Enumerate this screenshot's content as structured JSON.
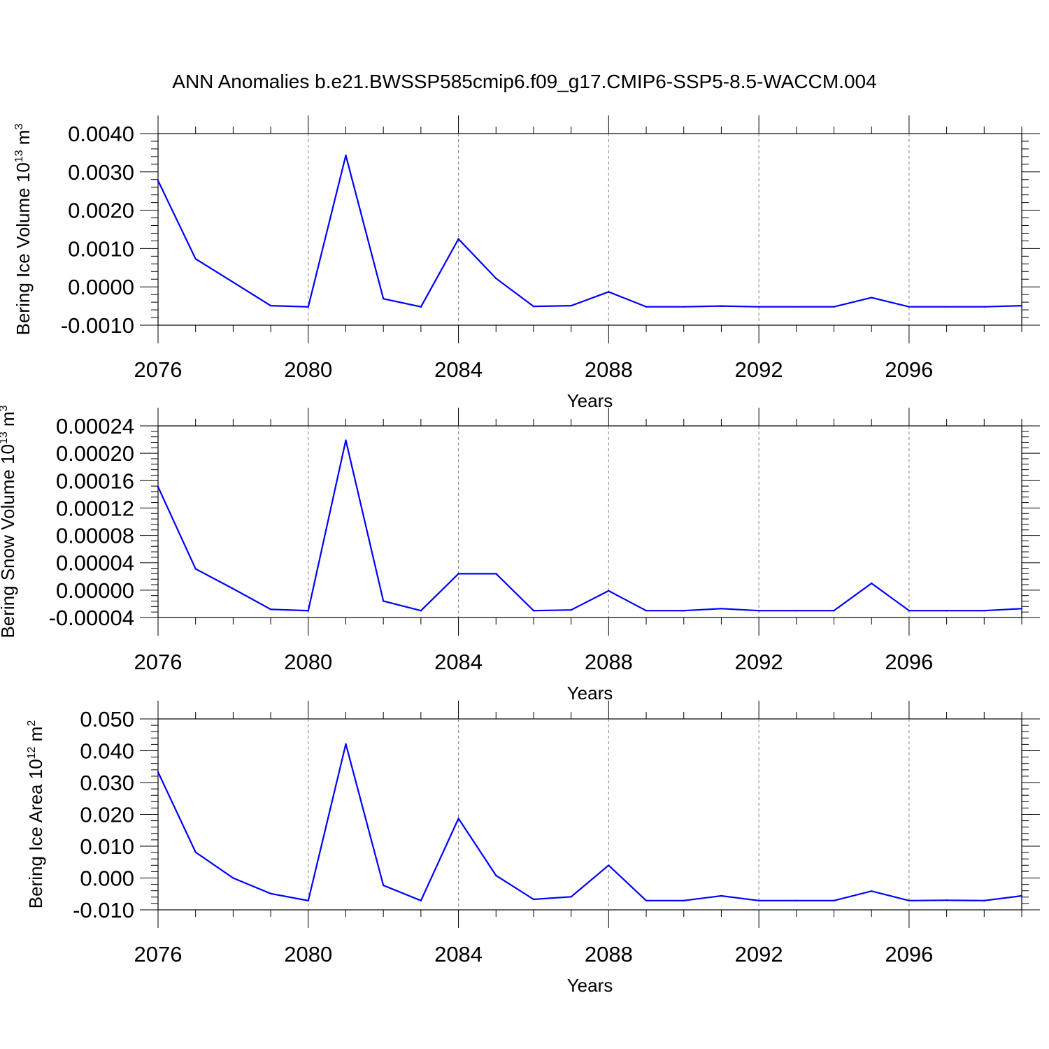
{
  "title": "ANN Anomalies b.e21.BWSSP585cmip6.f09_g17.CMIP6-SSP5-8.5-WACCM.004",
  "colors": {
    "line": "#0000ff",
    "axis": "#000000",
    "grid": "#808080"
  },
  "chart_data": [
    {
      "type": "line",
      "ylabel": "Bering Ice Volume 10",
      "ylabel_exp": "13",
      "ylabel_unit": " m",
      "ylabel_unit_exp": "3",
      "xlabel": "Years",
      "xlim": [
        2076,
        2099
      ],
      "ylim": [
        -0.001,
        0.004
      ],
      "y_ticks": [
        -0.001,
        0.0,
        0.001,
        0.002,
        0.003,
        0.004
      ],
      "y_tick_labels": [
        "-0.0010",
        "0.0000",
        "0.0010",
        "0.0020",
        "0.0030",
        "0.0040"
      ],
      "x_ticks": [
        2076,
        2080,
        2084,
        2088,
        2092,
        2096
      ],
      "x_tick_labels": [
        "2076",
        "2080",
        "2084",
        "2088",
        "2092",
        "2096"
      ],
      "grid_x": [
        2080,
        2084,
        2088,
        2092,
        2096
      ],
      "x": [
        2076,
        2077,
        2078,
        2079,
        2080,
        2081,
        2082,
        2083,
        2084,
        2085,
        2086,
        2087,
        2088,
        2089,
        2090,
        2091,
        2092,
        2093,
        2094,
        2095,
        2096,
        2097,
        2098,
        2099
      ],
      "y": [
        0.00277,
        0.00073,
        0.00012,
        -0.00049,
        -0.00052,
        0.00343,
        -0.00031,
        -0.00052,
        0.00125,
        0.00022,
        -0.00051,
        -0.00049,
        -0.00013,
        -0.00052,
        -0.00052,
        -0.0005,
        -0.00052,
        -0.00052,
        -0.00052,
        -0.00028,
        -0.00052,
        -0.00052,
        -0.00052,
        -0.00049
      ]
    },
    {
      "type": "line",
      "ylabel": "Bering Snow Volume 10",
      "ylabel_exp": "13",
      "ylabel_unit": " m",
      "ylabel_unit_exp": "3",
      "xlabel": "Years",
      "xlim": [
        2076,
        2099
      ],
      "ylim": [
        -4e-05,
        0.00024
      ],
      "y_ticks": [
        -4e-05,
        0.0,
        4e-05,
        8e-05,
        0.00012,
        0.00016,
        0.0002,
        0.00024
      ],
      "y_tick_labels": [
        "-0.00004",
        "0.00000",
        "0.00004",
        "0.00008",
        "0.00012",
        "0.00016",
        "0.00020",
        "0.00024"
      ],
      "x_ticks": [
        2076,
        2080,
        2084,
        2088,
        2092,
        2096
      ],
      "x_tick_labels": [
        "2076",
        "2080",
        "2084",
        "2088",
        "2092",
        "2096"
      ],
      "grid_x": [
        2080,
        2084,
        2088,
        2092,
        2096
      ],
      "x": [
        2076,
        2077,
        2078,
        2079,
        2080,
        2081,
        2082,
        2083,
        2084,
        2085,
        2086,
        2087,
        2088,
        2089,
        2090,
        2091,
        2092,
        2093,
        2094,
        2095,
        2096,
        2097,
        2098,
        2099
      ],
      "y": [
        0.000151,
        3.1e-05,
        2e-06,
        -2.8e-05,
        -3e-05,
        0.000219,
        -1.6e-05,
        -3e-05,
        2.4e-05,
        2.4e-05,
        -3e-05,
        -2.9e-05,
        -1e-06,
        -3e-05,
        -3e-05,
        -2.7e-05,
        -3e-05,
        -3e-05,
        -3e-05,
        1e-05,
        -3e-05,
        -3e-05,
        -3e-05,
        -2.7e-05
      ]
    },
    {
      "type": "line",
      "ylabel": "Bering Ice Area 10",
      "ylabel_exp": "12",
      "ylabel_unit": " m",
      "ylabel_unit_exp": "2",
      "xlabel": "Years",
      "xlim": [
        2076,
        2099
      ],
      "ylim": [
        -0.01,
        0.05
      ],
      "y_ticks": [
        -0.01,
        0.0,
        0.01,
        0.02,
        0.03,
        0.04,
        0.05
      ],
      "y_tick_labels": [
        "-0.010",
        "0.000",
        "0.010",
        "0.020",
        "0.030",
        "0.040",
        "0.050"
      ],
      "x_ticks": [
        2076,
        2080,
        2084,
        2088,
        2092,
        2096
      ],
      "x_tick_labels": [
        "2076",
        "2080",
        "2084",
        "2088",
        "2092",
        "2096"
      ],
      "grid_x": [
        2080,
        2084,
        2088,
        2092,
        2096
      ],
      "x": [
        2076,
        2077,
        2078,
        2079,
        2080,
        2081,
        2082,
        2083,
        2084,
        2085,
        2086,
        2087,
        2088,
        2089,
        2090,
        2091,
        2092,
        2093,
        2094,
        2095,
        2096,
        2097,
        2098,
        2099
      ],
      "y": [
        0.0333,
        0.0081,
        0.0,
        -0.0049,
        -0.0071,
        0.0421,
        -0.0023,
        -0.0071,
        0.0187,
        0.0008,
        -0.0067,
        -0.0059,
        0.004,
        -0.0071,
        -0.0071,
        -0.0056,
        -0.0071,
        -0.0071,
        -0.0071,
        -0.0041,
        -0.0071,
        -0.007,
        -0.0071,
        -0.0056
      ]
    }
  ]
}
